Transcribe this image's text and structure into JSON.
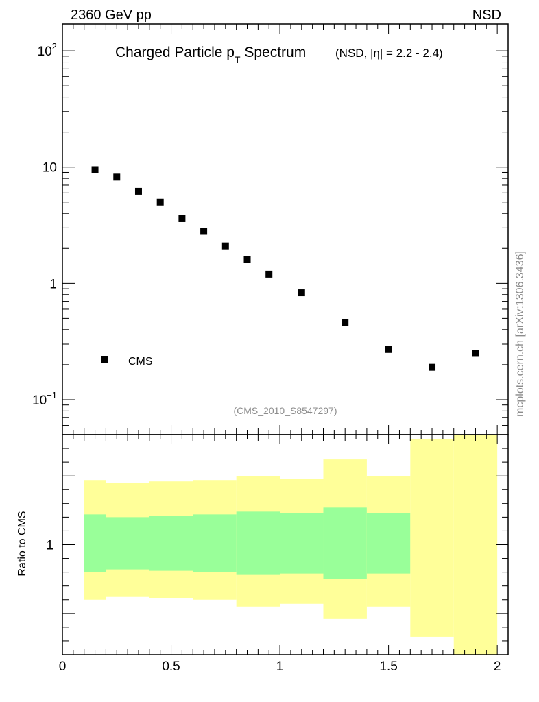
{
  "header": {
    "left": "2360 GeV pp",
    "right": "NSD"
  },
  "side_label": "mcplots.cern.ch [arXiv:1306.3436]",
  "ref_label": "(CMS_2010_S8547297)",
  "title": {
    "main_a": "Charged Particle p",
    "main_sub": "T",
    "main_b": " Spectrum",
    "qualifier": "(NSD, |η| = 2.2 - 2.4)"
  },
  "ratio_ylabel": "Ratio to CMS",
  "colors": {
    "marker": "#000000",
    "band_inner": "#99ff99",
    "band_outer": "#ffff99"
  },
  "chart_data": [
    {
      "type": "scatter",
      "title": "Charged Particle pT Spectrum (NSD, |η| = 2.2 - 2.4)",
      "yscale": "log",
      "xlim": [
        0,
        2.05
      ],
      "ylim": [
        0.05,
        170
      ],
      "legend": {
        "position": "bottom-left",
        "entries": [
          "CMS"
        ]
      },
      "series": [
        {
          "name": "CMS",
          "x": [
            0.15,
            0.25,
            0.35,
            0.45,
            0.55,
            0.65,
            0.75,
            0.85,
            0.95,
            1.1,
            1.3,
            1.5,
            1.7,
            1.9
          ],
          "y": [
            9.5,
            8.2,
            6.2,
            5.0,
            3.6,
            2.8,
            2.1,
            1.6,
            1.2,
            0.83,
            0.46,
            0.27,
            0.19,
            0.25
          ]
        }
      ],
      "y_ticks": [
        {
          "value": 0.1,
          "base": "10",
          "exp": "−1"
        },
        {
          "value": 1,
          "base": "1",
          "exp": ""
        },
        {
          "value": 10,
          "base": "10",
          "exp": ""
        },
        {
          "value": 100,
          "base": "10",
          "exp": "2"
        }
      ]
    },
    {
      "type": "area",
      "ylabel": "Ratio to CMS",
      "xlim": [
        0,
        2.05
      ],
      "ylim": [
        0.2,
        1.8
      ],
      "x_ticks": [
        "0",
        "0.5",
        "1",
        "1.5",
        "2"
      ],
      "y_ticks": [
        "1"
      ],
      "bins": [
        {
          "x0": 0.1,
          "x1": 0.2,
          "inner": [
            0.8,
            1.22
          ],
          "outer": [
            0.6,
            1.47
          ]
        },
        {
          "x0": 0.2,
          "x1": 0.4,
          "inner": [
            0.82,
            1.2
          ],
          "outer": [
            0.62,
            1.45
          ]
        },
        {
          "x0": 0.4,
          "x1": 0.6,
          "inner": [
            0.81,
            1.21
          ],
          "outer": [
            0.61,
            1.46
          ]
        },
        {
          "x0": 0.6,
          "x1": 0.8,
          "inner": [
            0.8,
            1.22
          ],
          "outer": [
            0.6,
            1.47
          ]
        },
        {
          "x0": 0.8,
          "x1": 1.0,
          "inner": [
            0.78,
            1.24
          ],
          "outer": [
            0.55,
            1.5
          ]
        },
        {
          "x0": 1.0,
          "x1": 1.2,
          "inner": [
            0.79,
            1.23
          ],
          "outer": [
            0.57,
            1.48
          ]
        },
        {
          "x0": 1.2,
          "x1": 1.4,
          "inner": [
            0.75,
            1.27
          ],
          "outer": [
            0.46,
            1.62
          ]
        },
        {
          "x0": 1.4,
          "x1": 1.6,
          "inner": [
            0.79,
            1.23
          ],
          "outer": [
            0.55,
            1.5
          ]
        },
        {
          "x0": 1.6,
          "x1": 1.8,
          "inner": null,
          "outer": [
            0.33,
            1.77
          ]
        },
        {
          "x0": 1.8,
          "x1": 2.0,
          "inner": null,
          "outer": [
            0.08,
            2.0
          ]
        }
      ]
    }
  ]
}
